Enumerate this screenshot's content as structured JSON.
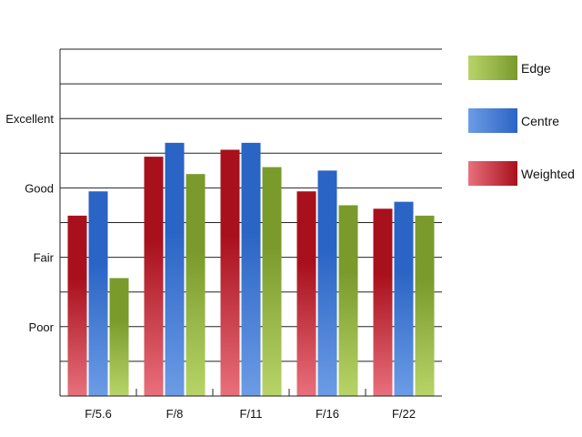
{
  "chart_data": {
    "type": "bar",
    "title": "",
    "xlabel": "",
    "ylabel": "",
    "categories": [
      "F/5.6",
      "F/8",
      "F/11",
      "F/16",
      "F/22"
    ],
    "y_tick_labels": [
      {
        "value": 3,
        "label": "Poor"
      },
      {
        "value": 5,
        "label": "Fair"
      },
      {
        "value": 7,
        "label": "Good"
      },
      {
        "value": 9,
        "label": "Excellent"
      }
    ],
    "ylim": [
      1,
      11
    ],
    "grid": true,
    "legend_position": "right",
    "series": [
      {
        "name": "Weighted",
        "values": [
          6.2,
          7.9,
          8.1,
          6.9,
          6.4
        ],
        "colors": {
          "light": "#e8707c",
          "dark": "#a8101c"
        }
      },
      {
        "name": "Centre",
        "values": [
          6.9,
          8.3,
          8.3,
          7.5,
          6.6
        ],
        "colors": {
          "light": "#6c9ce6",
          "dark": "#2a64c4"
        }
      },
      {
        "name": "Edge",
        "values": [
          4.4,
          7.4,
          7.6,
          6.5,
          6.2
        ],
        "colors": {
          "light": "#b8d468",
          "dark": "#7a9a2c"
        }
      }
    ],
    "legend_order": [
      "Edge",
      "Centre",
      "Weighted"
    ]
  }
}
